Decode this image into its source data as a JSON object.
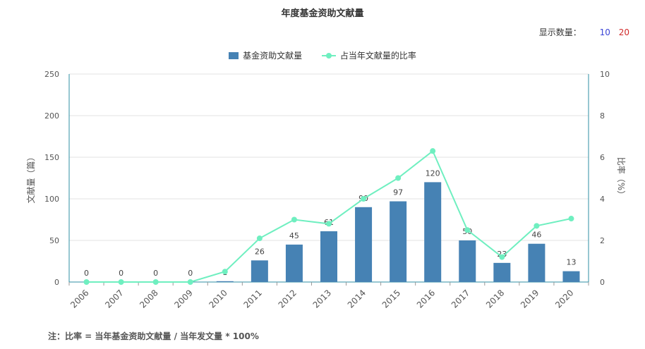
{
  "chart_data": {
    "type": "bar",
    "title": "年度基金资助文献量",
    "categories": [
      "2006",
      "2007",
      "2008",
      "2009",
      "2010",
      "2011",
      "2012",
      "2013",
      "2014",
      "2015",
      "2016",
      "2017",
      "2018",
      "2019",
      "2020"
    ],
    "series": [
      {
        "name": "基金资助文献量",
        "type": "bar",
        "axis": "left",
        "values": [
          0,
          0,
          0,
          0,
          1,
          26,
          45,
          61,
          90,
          97,
          120,
          50,
          23,
          46,
          13
        ]
      },
      {
        "name": "占当年文献量的比率",
        "type": "line",
        "axis": "right",
        "values": [
          0,
          0,
          0,
          0,
          0.5,
          2.1,
          3.0,
          2.8,
          4.0,
          5.0,
          6.3,
          2.5,
          1.2,
          2.7,
          3.05
        ]
      }
    ],
    "ylabel": "文献量（篇）",
    "ylabel_right": "比率（%）",
    "ylim": [
      0,
      250
    ],
    "ylim_right": [
      0,
      10
    ],
    "yticks": [
      "0",
      "50",
      "100",
      "150",
      "200",
      "250"
    ],
    "yticks_right": [
      "0",
      "2",
      "4",
      "6",
      "8",
      "10"
    ],
    "grid": true,
    "legend_position": "top-center",
    "colors": {
      "bar": "#4682b4",
      "line": "#6fefc0",
      "axis": "#2f8fa3",
      "grid": "#e3e3e3"
    }
  },
  "display_count": {
    "label": "显示数量：",
    "options": [
      "10",
      "20"
    ]
  },
  "note": "注：比率 = 当年基金资助文献量 / 当年发文量 * 100%"
}
